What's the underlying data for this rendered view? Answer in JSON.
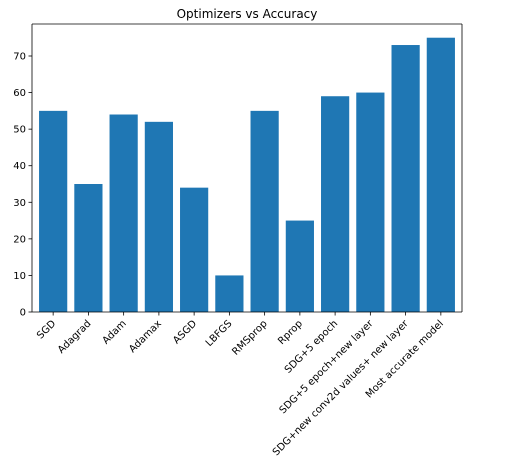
{
  "chart_data": {
    "type": "bar",
    "title": "Optimizers vs Accuracy",
    "xlabel": "",
    "ylabel": "",
    "categories": [
      "SGD",
      "Adagrad",
      "Adam",
      "Adamax",
      "ASGD",
      "LBFGS",
      "RMSprop",
      "Rprop",
      "SDG+5 epoch",
      "SDG+5 epoch+new layer",
      "SDG+new conv2d values+ new layer",
      "Most accurate model"
    ],
    "values": [
      55,
      35,
      54,
      52,
      34,
      10,
      55,
      25,
      59,
      60,
      73,
      75
    ],
    "ylim": [
      0,
      78.75
    ],
    "yticks": [
      0,
      10,
      20,
      30,
      40,
      50,
      60,
      70
    ],
    "bar_color": "#1f77b4",
    "grid": false,
    "legend": "none"
  }
}
